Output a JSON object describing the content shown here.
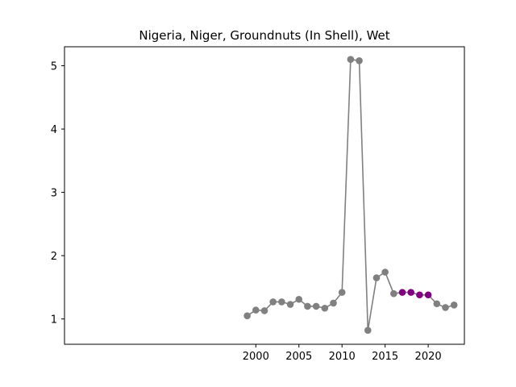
{
  "chart_data": {
    "type": "line",
    "title": "Nigeria, Niger, Groundnuts (In Shell), Wet",
    "xlabel": "",
    "ylabel": "",
    "xlim": [
      1977.8,
      2024.2
    ],
    "ylim": [
      0.6,
      5.3
    ],
    "x_ticks": [
      2000,
      2005,
      2010,
      2015,
      2020
    ],
    "y_ticks": [
      1,
      2,
      3,
      4,
      5
    ],
    "grid": false,
    "line_color": "#808080",
    "highlight_color": "#800080",
    "series": [
      {
        "x": [
          1999,
          2000,
          2001,
          2002,
          2003,
          2004,
          2005,
          2006,
          2007,
          2008,
          2009,
          2010,
          2011,
          2012,
          2013,
          2014,
          2015,
          2016,
          2017,
          2018,
          2019,
          2020,
          2021,
          2022,
          2023
        ],
        "values": [
          1.05,
          1.14,
          1.13,
          1.27,
          1.27,
          1.23,
          1.31,
          1.2,
          1.2,
          1.17,
          1.25,
          1.42,
          5.1,
          5.08,
          0.82,
          1.65,
          1.74,
          1.4,
          1.42,
          1.42,
          1.38,
          1.38,
          1.24,
          1.18,
          1.22
        ],
        "highlighted_x": [
          2017,
          2018,
          2019,
          2020
        ]
      }
    ]
  }
}
